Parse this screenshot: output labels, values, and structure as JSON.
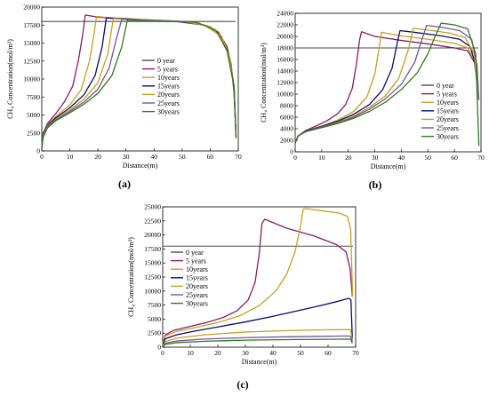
{
  "chart_data": [
    {
      "type": "line",
      "panel_label": "(a)",
      "xlabel": "Distance(m)",
      "ylabel": "CH₄ Concentration(mol/m³)",
      "xlim": [
        0,
        70
      ],
      "ylim": [
        0,
        20000
      ],
      "x_ticks": [
        0,
        10,
        20,
        30,
        40,
        50,
        60,
        70
      ],
      "y_ticks": [
        0,
        2500,
        5000,
        7500,
        10000,
        12500,
        15000,
        17500,
        20000
      ],
      "legend_placement": "right",
      "series": [
        {
          "name": "0 year",
          "color": "#4d4d4d",
          "x": [
            0,
            69
          ],
          "y": [
            18000,
            18000
          ]
        },
        {
          "name": "5 years",
          "color": "#8b1a6b",
          "x": [
            0,
            0.5,
            2,
            5,
            8,
            11,
            13,
            14.5,
            15.5,
            20,
            30,
            40,
            50,
            58,
            63,
            66,
            67.5,
            68.5,
            69.2
          ],
          "y": [
            500,
            2500,
            3800,
            5200,
            6800,
            9000,
            12500,
            16000,
            18900,
            18600,
            18300,
            18100,
            18000,
            17500,
            16500,
            14500,
            12000,
            8000,
            1800
          ]
        },
        {
          "name": "10years",
          "color": "#c8a020",
          "x": [
            0,
            0.5,
            2,
            5,
            10,
            14,
            17,
            18.5,
            19.5,
            25,
            35,
            45,
            55,
            60,
            64,
            67,
            68.5,
            69.2
          ],
          "y": [
            500,
            2300,
            3600,
            4800,
            6400,
            8500,
            12500,
            16000,
            18700,
            18500,
            18300,
            18100,
            17800,
            17300,
            16000,
            13000,
            9000,
            2000
          ]
        },
        {
          "name": "15years",
          "color": "#0a0a7a",
          "x": [
            0,
            0.5,
            2,
            5,
            10,
            15,
            19,
            21.5,
            23,
            28,
            38,
            48,
            58,
            63,
            66.5,
            68.5,
            69.2
          ],
          "y": [
            400,
            2200,
            3500,
            4600,
            6000,
            7800,
            10500,
            14500,
            18500,
            18400,
            18200,
            18000,
            17500,
            16200,
            13500,
            9000,
            2000
          ]
        },
        {
          "name": "20years",
          "color": "#c8a020",
          "x": [
            0,
            0.5,
            2,
            5,
            10,
            15,
            20,
            23.5,
            25.5,
            30,
            40,
            50,
            58,
            63,
            66.5,
            68.5,
            69.2
          ],
          "y": [
            400,
            2100,
            3400,
            4400,
            5700,
            7200,
            9500,
            13500,
            18400,
            18300,
            18200,
            18000,
            17500,
            16200,
            13500,
            9000,
            2000
          ]
        },
        {
          "name": "25years",
          "color": "#7a52a0",
          "x": [
            0,
            0.5,
            2,
            5,
            10,
            15,
            20,
            24,
            26.5,
            28.5,
            35,
            45,
            55,
            62,
            66,
            68.5,
            69.2
          ],
          "y": [
            400,
            2000,
            3300,
            4300,
            5500,
            6800,
            8600,
            11500,
            15500,
            18300,
            18200,
            18100,
            17900,
            16800,
            14000,
            9000,
            2000
          ]
        },
        {
          "name": "30years",
          "color": "#2e7d1e",
          "x": [
            0,
            0.5,
            2,
            5,
            10,
            15,
            20,
            25,
            28.5,
            30.5,
            35,
            45,
            55,
            62,
            66,
            68.5,
            69.2
          ],
          "y": [
            400,
            1900,
            3200,
            4200,
            5300,
            6500,
            8000,
            10500,
            14500,
            18200,
            18100,
            18000,
            17900,
            16800,
            14000,
            9000,
            1800
          ]
        }
      ]
    },
    {
      "type": "line",
      "panel_label": "(b)",
      "xlabel": "Distance(m)",
      "ylabel": "CH₄ Concentration(mol/m³)",
      "xlim": [
        0,
        70
      ],
      "ylim": [
        0,
        24000
      ],
      "x_ticks": [
        0,
        10,
        20,
        30,
        40,
        50,
        60,
        70
      ],
      "y_ticks": [
        0,
        2000,
        4000,
        6000,
        8000,
        10000,
        12000,
        14000,
        16000,
        18000,
        20000,
        22000,
        24000
      ],
      "legend_placement": "bottom-right",
      "series": [
        {
          "name": "0 year",
          "color": "#4d4d4d",
          "x": [
            0,
            69
          ],
          "y": [
            18000,
            18000
          ]
        },
        {
          "name": "5 years",
          "color": "#8b1a6b",
          "x": [
            0,
            1,
            4,
            8,
            12,
            16,
            19,
            21.5,
            23,
            24.3,
            25,
            30,
            40,
            50,
            60,
            65,
            67.5,
            68.8
          ],
          "y": [
            1500,
            2700,
            3700,
            4500,
            5400,
            6600,
            8200,
            11000,
            15000,
            19500,
            20800,
            20000,
            19300,
            18700,
            18000,
            17500,
            15500,
            11000
          ]
        },
        {
          "name": "10years",
          "color": "#c8a020",
          "x": [
            0,
            1,
            4,
            10,
            16,
            22,
            27,
            30,
            31.8,
            32.5,
            40,
            50,
            60,
            65,
            67.5,
            68.8
          ],
          "y": [
            1500,
            2700,
            3600,
            4500,
            5500,
            7000,
            9500,
            13500,
            18500,
            20700,
            20100,
            19500,
            18800,
            18000,
            16000,
            11000
          ]
        },
        {
          "name": "15years",
          "color": "#0a0a7a",
          "x": [
            0,
            1,
            4,
            10,
            16,
            22,
            28,
            33,
            36.5,
            38.5,
            39.5,
            45,
            55,
            62,
            66,
            68,
            69
          ],
          "y": [
            1500,
            2700,
            3600,
            4400,
            5300,
            6500,
            8200,
            10800,
            14500,
            19000,
            21000,
            20700,
            20100,
            19500,
            18200,
            15000,
            9000
          ]
        },
        {
          "name": "20years",
          "color": "#c8a020",
          "x": [
            0,
            1,
            4,
            10,
            16,
            22,
            28,
            34,
            39,
            42.5,
            44.5,
            50,
            58,
            64,
            67.5,
            69
          ],
          "y": [
            1500,
            2700,
            3500,
            4300,
            5100,
            6200,
            7700,
            9700,
            12700,
            17500,
            21400,
            21100,
            20600,
            19800,
            17000,
            9000
          ]
        },
        {
          "name": "25years",
          "color": "#7a52a0",
          "x": [
            0,
            1,
            4,
            10,
            16,
            22,
            28,
            34,
            40,
            45,
            48,
            49.5,
            55,
            62,
            66.5,
            68.5,
            69.2
          ],
          "y": [
            1500,
            2700,
            3500,
            4300,
            5000,
            6000,
            7400,
            9200,
            11700,
            15500,
            19800,
            21900,
            21600,
            21000,
            19500,
            15000,
            9000
          ]
        },
        {
          "name": "30years",
          "color": "#2e7d1e",
          "x": [
            0,
            1,
            4,
            10,
            16,
            22,
            28,
            34,
            40,
            46,
            50,
            53,
            55,
            60,
            65,
            68,
            69.2
          ],
          "y": [
            1500,
            2700,
            3500,
            4200,
            4900,
            5800,
            7000,
            8600,
            10800,
            13700,
            17000,
            20300,
            22300,
            22000,
            21300,
            17000,
            1000
          ]
        }
      ]
    },
    {
      "type": "line",
      "panel_label": "(c)",
      "xlabel": "Distance(m)",
      "ylabel": "CH₄ Concentration(mol/m³)",
      "xlim": [
        0,
        70
      ],
      "ylim": [
        0,
        25000
      ],
      "x_ticks": [
        0,
        10,
        20,
        30,
        40,
        50,
        60,
        70
      ],
      "y_ticks": [
        0,
        2500,
        5000,
        7500,
        10000,
        12500,
        15000,
        17500,
        20000,
        22500,
        25000
      ],
      "legend_placement": "left",
      "series": [
        {
          "name": "0 year",
          "color": "#4d4d4d",
          "x": [
            0,
            69
          ],
          "y": [
            18000,
            18000
          ]
        },
        {
          "name": "5 years",
          "color": "#8b1a6b",
          "x": [
            0,
            1,
            4,
            10,
            16,
            22,
            27,
            31,
            33.5,
            35,
            36,
            37,
            45,
            55,
            63,
            66.5,
            68,
            68.8
          ],
          "y": [
            800,
            2200,
            3000,
            3700,
            4400,
            5300,
            6500,
            8400,
            11500,
            16500,
            22000,
            22800,
            21200,
            19800,
            18300,
            17000,
            14000,
            9000
          ]
        },
        {
          "name": "10years",
          "color": "#c8a020",
          "x": [
            0,
            1,
            5,
            12,
            20,
            28,
            35,
            41,
            45,
            48,
            50,
            51,
            52,
            58,
            64,
            67,
            68.2,
            68.9
          ],
          "y": [
            700,
            2000,
            2800,
            3500,
            4400,
            5600,
            7400,
            10000,
            13000,
            17000,
            21500,
            24600,
            24700,
            24300,
            23900,
            23300,
            21000,
            9000
          ]
        },
        {
          "name": "15years",
          "color": "#0a0a7a",
          "x": [
            0,
            1,
            5,
            12,
            20,
            30,
            40,
            50,
            58,
            63,
            66,
            67.5,
            68.3,
            68.8
          ],
          "y": [
            500,
            1500,
            2200,
            2900,
            3600,
            4500,
            5500,
            6600,
            7500,
            8100,
            8500,
            8700,
            8400,
            1500
          ]
        },
        {
          "name": "20years",
          "color": "#c8a020",
          "x": [
            0,
            1,
            5,
            15,
            30,
            45,
            60,
            67,
            68.2,
            68.8
          ],
          "y": [
            300,
            1000,
            1600,
            2200,
            2700,
            2950,
            3100,
            3150,
            3100,
            1200
          ]
        },
        {
          "name": "25years",
          "color": "#7a52a0",
          "x": [
            0,
            1,
            5,
            15,
            30,
            45,
            60,
            67,
            68.2,
            68.8
          ],
          "y": [
            200,
            700,
            1100,
            1450,
            1700,
            1850,
            1950,
            2000,
            1950,
            900
          ]
        },
        {
          "name": "30years",
          "color": "#2e7d1e",
          "x": [
            0,
            1,
            5,
            15,
            30,
            45,
            60,
            67,
            68.2,
            68.8
          ],
          "y": [
            150,
            500,
            800,
            1050,
            1250,
            1350,
            1400,
            1450,
            1400,
            700
          ]
        }
      ]
    }
  ]
}
